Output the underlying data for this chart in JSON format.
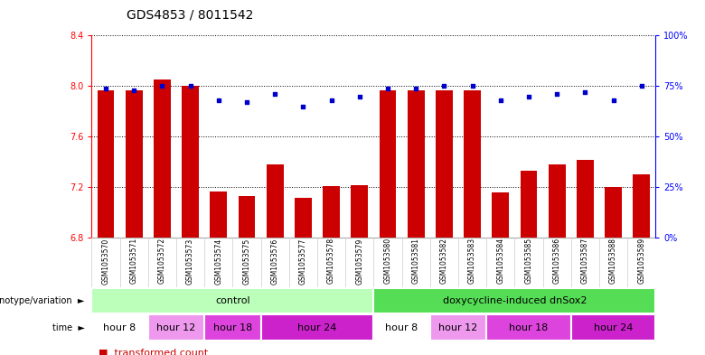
{
  "title": "GDS4853 / 8011542",
  "samples": [
    "GSM1053570",
    "GSM1053571",
    "GSM1053572",
    "GSM1053573",
    "GSM1053574",
    "GSM1053575",
    "GSM1053576",
    "GSM1053577",
    "GSM1053578",
    "GSM1053579",
    "GSM1053580",
    "GSM1053581",
    "GSM1053582",
    "GSM1053583",
    "GSM1053584",
    "GSM1053585",
    "GSM1053586",
    "GSM1053587",
    "GSM1053588",
    "GSM1053589"
  ],
  "bar_values": [
    7.97,
    7.97,
    8.05,
    8.0,
    7.17,
    7.13,
    7.38,
    7.12,
    7.21,
    7.22,
    7.97,
    7.97,
    7.97,
    7.97,
    7.16,
    7.33,
    7.38,
    7.42,
    7.2,
    7.3
  ],
  "dot_values": [
    74,
    73,
    75,
    75,
    68,
    67,
    71,
    65,
    68,
    70,
    74,
    74,
    75,
    75,
    68,
    70,
    71,
    72,
    68,
    75
  ],
  "ylim_left": [
    6.8,
    8.4
  ],
  "ylim_right": [
    0,
    100
  ],
  "yticks_left": [
    6.8,
    7.2,
    7.6,
    8.0,
    8.4
  ],
  "yticks_right": [
    0,
    25,
    50,
    75,
    100
  ],
  "bar_color": "#cc0000",
  "dot_color": "#0000cc",
  "bar_width": 0.6,
  "genotype_groups": [
    {
      "label": "control",
      "start": 0,
      "end": 10,
      "color": "#bbffbb"
    },
    {
      "label": "doxycycline-induced dnSox2",
      "start": 10,
      "end": 20,
      "color": "#55dd55"
    }
  ],
  "time_groups": [
    {
      "label": "hour 8",
      "start": 0,
      "end": 2,
      "color": "#ffffff"
    },
    {
      "label": "hour 12",
      "start": 2,
      "end": 4,
      "color": "#ee99ee"
    },
    {
      "label": "hour 18",
      "start": 4,
      "end": 6,
      "color": "#dd44dd"
    },
    {
      "label": "hour 24",
      "start": 6,
      "end": 10,
      "color": "#cc22cc"
    },
    {
      "label": "hour 8",
      "start": 10,
      "end": 12,
      "color": "#ffffff"
    },
    {
      "label": "hour 12",
      "start": 12,
      "end": 14,
      "color": "#ee99ee"
    },
    {
      "label": "hour 18",
      "start": 14,
      "end": 17,
      "color": "#dd44dd"
    },
    {
      "label": "hour 24",
      "start": 17,
      "end": 20,
      "color": "#cc22cc"
    }
  ],
  "bg_color": "#ffffff",
  "title_fontsize": 10,
  "tick_fontsize": 7,
  "label_fontsize": 7,
  "annot_fontsize": 8,
  "legend_fontsize": 8
}
